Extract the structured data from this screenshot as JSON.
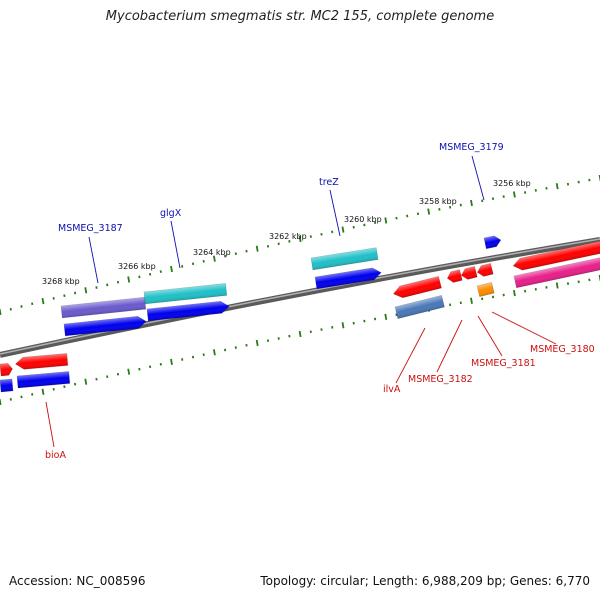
{
  "title": "Mycobacterium smegmatis str. MC2 155, complete genome",
  "footer": {
    "accession_label": "Accession:",
    "accession": "NC_008596",
    "topology_label": "Topology:",
    "topology": "circular",
    "length_label": "Length:",
    "length": "6,988,209 bp",
    "genes_label": "Genes:",
    "genes": "6,770"
  },
  "colors": {
    "backbone": "#808080",
    "tick": "#2a7a1a",
    "label_blue": "#1010b0",
    "label_red": "#cc1010",
    "cds_red": "#ff0000",
    "cds_blue": "#0000ee",
    "cds_cyan": "#20c0c8",
    "cds_purple": "#6a5acd",
    "cds_steel": "#4a78b8",
    "cds_magenta": "#e8208a",
    "cds_orange": "#ff8c00"
  },
  "kbp_ticks": [
    {
      "label": "3268 kbp"
    },
    {
      "label": "3266 kbp"
    },
    {
      "label": "3264 kbp"
    },
    {
      "label": "3262 kbp"
    },
    {
      "label": "3260 kbp"
    },
    {
      "label": "3258 kbp"
    },
    {
      "label": "3256 kbp"
    }
  ],
  "labels_top": [
    {
      "text": "MSMEG_3187",
      "color": "blue"
    },
    {
      "text": "glgX",
      "color": "blue"
    },
    {
      "text": "treZ",
      "color": "blue"
    },
    {
      "text": "MSMEG_3179",
      "color": "blue"
    }
  ],
  "labels_bottom": [
    {
      "text": "bioA",
      "color": "red"
    },
    {
      "text": "ilvA",
      "color": "red"
    },
    {
      "text": "MSMEG_3182",
      "color": "red"
    },
    {
      "text": "MSMEG_3181",
      "color": "red"
    },
    {
      "text": "MSMEG_3180",
      "color": "red"
    }
  ]
}
